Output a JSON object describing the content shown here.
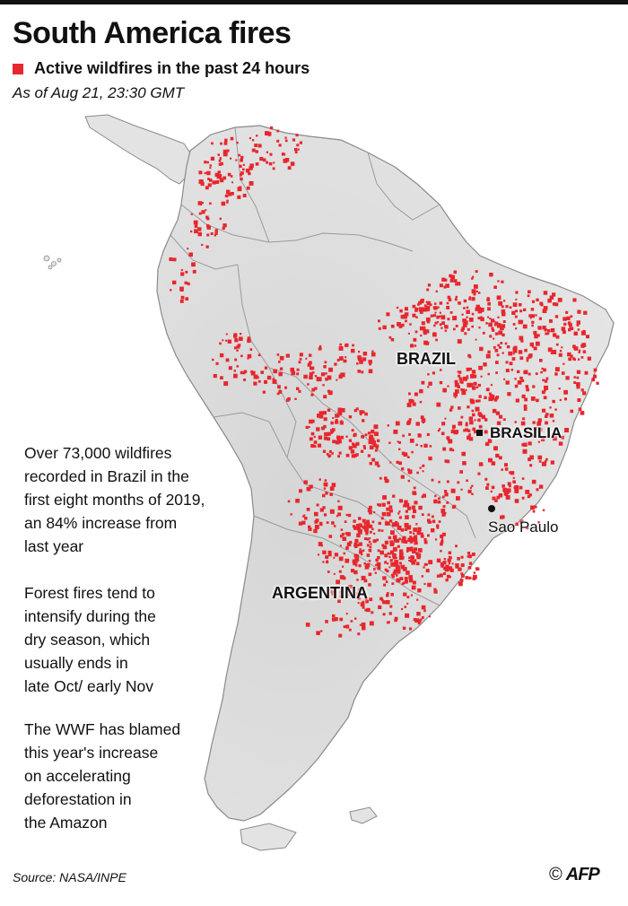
{
  "title": "South America fires",
  "legend": {
    "label": "Active wildfires in the past 24 hours",
    "color": "#e8262d"
  },
  "as_of": "As of Aug 21, 23:30 GMT",
  "labels": {
    "brazil": "BRAZIL",
    "brasilia": "BRASILIA",
    "sao_paulo": "Sao Paulo",
    "argentina": "ARGENTINA"
  },
  "notes": [
    "Over 73,000 wildfires\nrecorded in Brazil in the\nfirst eight months of 2019,\nan 84% increase from\nlast year",
    "Forest fires tend to\nintensify during the\ndry season, which\nusually ends in\nlate Oct/ early Nov",
    "The WWF has blamed\nthis year's increase\non accelerating\ndeforestation in\nthe Amazon"
  ],
  "source": "Source: NASA/INPE",
  "credit": {
    "symbol": "©",
    "agency": "AFP"
  },
  "colors": {
    "land": "#e3e3e3",
    "border": "#9a9a9a",
    "fire": "#e8262d",
    "coast": "#8a8a8a"
  }
}
